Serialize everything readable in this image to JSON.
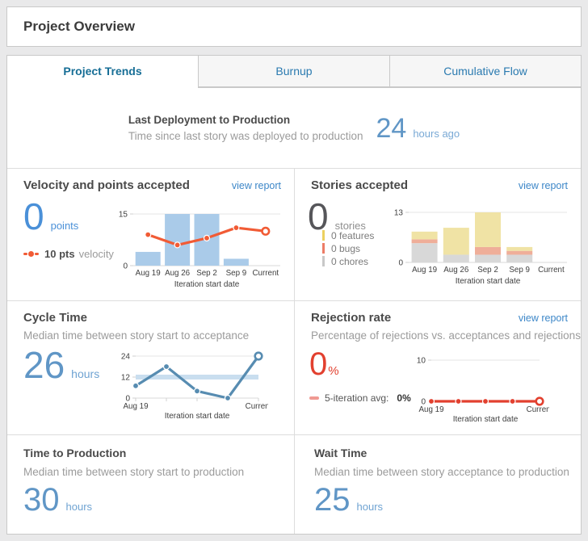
{
  "page": {
    "title": "Project Overview"
  },
  "tabs": [
    {
      "label": "Project Trends",
      "active": true
    },
    {
      "label": "Burnup",
      "active": false
    },
    {
      "label": "Cumulative Flow",
      "active": false
    }
  ],
  "deployment": {
    "title": "Last Deployment to Production",
    "subtitle": "Time since last story was deployed to production",
    "value": "24",
    "unit": "hours ago"
  },
  "velocity": {
    "title": "Velocity and points accepted",
    "link": "view report",
    "value": "0",
    "unit": "points",
    "legend_value": "10 pts",
    "legend_label": "velocity"
  },
  "stories": {
    "title": "Stories accepted",
    "link": "view report",
    "value": "0",
    "unit": "stories",
    "legend": [
      {
        "label": "0 features",
        "color": "#ecd05f"
      },
      {
        "label": "0 bugs",
        "color": "#ec7c66"
      },
      {
        "label": "0 chores",
        "color": "#c8c8c8"
      }
    ]
  },
  "cycle": {
    "title": "Cycle Time",
    "subtitle": "Median time between story start to acceptance",
    "value": "26",
    "unit": "hours"
  },
  "rejection": {
    "title": "Rejection rate",
    "link": "view report",
    "subtitle": "Percentage of rejections vs. acceptances and rejections",
    "value": "0",
    "unit": "%",
    "legend_prefix": "5-iteration avg:",
    "legend_value": "0%"
  },
  "production": {
    "title": "Time to Production",
    "subtitle": "Median time between story start to production",
    "value": "30",
    "unit": "hours"
  },
  "wait": {
    "title": "Wait Time",
    "subtitle": "Median time between story acceptance to production",
    "value": "25",
    "unit": "hours"
  },
  "chart_data": [
    {
      "id": "velocity-chart",
      "type": "bar",
      "title": "Velocity and points accepted",
      "categories": [
        "Aug 19",
        "Aug 26",
        "Sep 2",
        "Sep 9",
        "Current"
      ],
      "xlabel": "Iteration start date",
      "ylim": [
        0,
        15
      ],
      "yticks": [
        0,
        15
      ],
      "series": [
        {
          "name": "points accepted",
          "kind": "bar",
          "values": [
            4,
            15,
            15,
            2,
            0
          ],
          "color": "#aacbe9"
        },
        {
          "name": "velocity",
          "kind": "line",
          "values": [
            9,
            6,
            8,
            11,
            10
          ],
          "color": "#f15b35",
          "open_last_point": true
        }
      ]
    },
    {
      "id": "stories-chart",
      "type": "bar",
      "title": "Stories accepted",
      "categories": [
        "Aug 19",
        "Aug 26",
        "Sep 2",
        "Sep 9",
        "Current"
      ],
      "xlabel": "Iteration start date",
      "ylim": [
        0,
        13
      ],
      "yticks": [
        0,
        13
      ],
      "series": [
        {
          "name": "chores",
          "kind": "bar",
          "stack": true,
          "values": [
            5,
            2,
            2,
            2,
            0
          ],
          "color": "#d8d8d8"
        },
        {
          "name": "bugs",
          "kind": "bar",
          "stack": true,
          "values": [
            1,
            0,
            2,
            1,
            0
          ],
          "color": "#efae99"
        },
        {
          "name": "features",
          "kind": "bar",
          "stack": true,
          "values": [
            2,
            7,
            9,
            1,
            0
          ],
          "color": "#f0e3a5"
        }
      ]
    },
    {
      "id": "cycle-chart",
      "type": "line",
      "title": "Cycle Time (hours)",
      "categories": [
        "Aug 19",
        "",
        "",
        "",
        "Current"
      ],
      "xlabel": "Iteration start date",
      "ylim": [
        0,
        24
      ],
      "yticks": [
        0,
        12,
        24
      ],
      "reference_band": {
        "value": 12,
        "color": "#c9deef"
      },
      "series": [
        {
          "name": "cycle time",
          "kind": "line",
          "values": [
            7,
            18,
            4,
            0,
            24
          ],
          "color": "#578cb1",
          "open_last_point": true
        }
      ]
    },
    {
      "id": "rejection-chart",
      "type": "line",
      "title": "Rejection rate (%)",
      "categories": [
        "Aug 19",
        "",
        "",
        "",
        "Current"
      ],
      "xlabel": "Iteration start date",
      "ylim": [
        0,
        10
      ],
      "yticks": [
        0,
        10
      ],
      "series": [
        {
          "name": "rejection rate",
          "kind": "line",
          "values": [
            0,
            0,
            0,
            0,
            0
          ],
          "color": "#e2402f",
          "open_last_point": true
        }
      ]
    }
  ]
}
